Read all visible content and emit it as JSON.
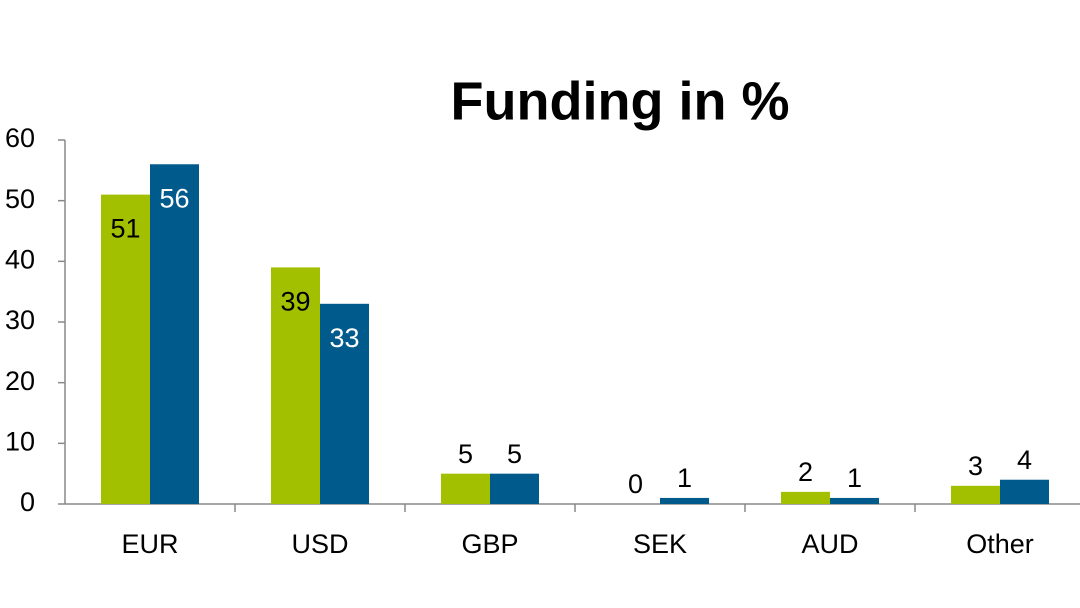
{
  "chart_data": {
    "type": "bar",
    "title": "Funding in %",
    "categories": [
      "EUR",
      "USD",
      "GBP",
      "SEK",
      "AUD",
      "Other"
    ],
    "series": [
      {
        "color": "#a3c000",
        "values": [
          51,
          39,
          5,
          0,
          2,
          3
        ]
      },
      {
        "color": "#005a8c",
        "values": [
          56,
          33,
          5,
          1,
          1,
          4
        ]
      }
    ],
    "ylim": [
      0,
      60
    ],
    "yticks": [
      0,
      10,
      20,
      30,
      40,
      50,
      60
    ],
    "grid": false
  }
}
